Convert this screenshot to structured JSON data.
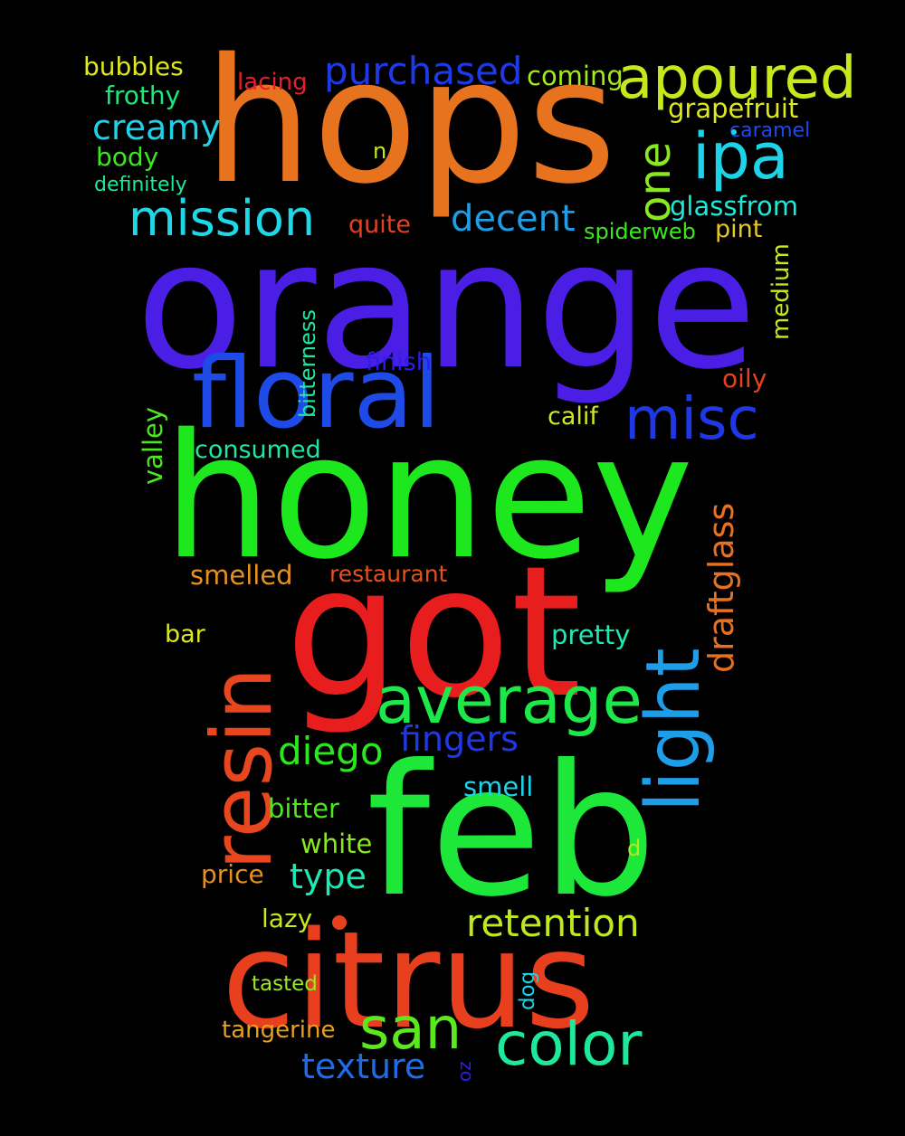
{
  "words": {
    "orange": {
      "text": "orange",
      "color": "#4b1ee6"
    },
    "hops": {
      "text": "hops",
      "color": "#e8731e"
    },
    "honey": {
      "text": "honey",
      "color": "#1de81d"
    },
    "got": {
      "text": "got",
      "color": "#e81e1e"
    },
    "feb": {
      "text": "feb",
      "color": "#1de83a"
    },
    "citrus": {
      "text": "citrus",
      "color": "#e8401e"
    },
    "floral": {
      "text": "floral",
      "color": "#1e4be8"
    },
    "resin": {
      "text": "resin",
      "color": "#e8461e"
    },
    "average": {
      "text": "average",
      "color": "#1de84a"
    },
    "light": {
      "text": "light",
      "color": "#1e9ee8"
    },
    "mission": {
      "text": "mission",
      "color": "#1ed8e8"
    },
    "misc": {
      "text": "misc",
      "color": "#1e38e8"
    },
    "ipa": {
      "text": "ipa",
      "color": "#1ed2e8"
    },
    "apoured": {
      "text": "apoured",
      "color": "#c8e81e"
    },
    "purchased": {
      "text": "purchased",
      "color": "#1e3ae8"
    },
    "color": {
      "text": "color",
      "color": "#1ee89a"
    },
    "san": {
      "text": "san",
      "color": "#5ae81e"
    },
    "retention": {
      "text": "retention",
      "color": "#c0e81e"
    },
    "creamy": {
      "text": "creamy",
      "color": "#1ed2e8"
    },
    "one": {
      "text": "one",
      "color": "#8ae81e"
    },
    "decent": {
      "text": "decent",
      "color": "#1e9ee8"
    },
    "draftglass": {
      "text": "draftglass",
      "color": "#e8701e"
    },
    "diego": {
      "text": "diego",
      "color": "#2ae81e"
    },
    "fingers": {
      "text": "fingers",
      "color": "#1e38e8"
    },
    "texture": {
      "text": "texture",
      "color": "#1e6ce8"
    },
    "type": {
      "text": "type",
      "color": "#1ee8b4"
    },
    "grapefruit": {
      "text": "grapefruit",
      "color": "#dde81e"
    },
    "glassfrom": {
      "text": "glassfrom",
      "color": "#1ee8d8"
    },
    "coming": {
      "text": "coming",
      "color": "#a6e81e"
    },
    "bubbles": {
      "text": "bubbles",
      "color": "#dde81e"
    },
    "frothy": {
      "text": "frothy",
      "color": "#1ee87a"
    },
    "body": {
      "text": "body",
      "color": "#3ae81e"
    },
    "definitely": {
      "text": "definitely",
      "color": "#1ee89a"
    },
    "lacing": {
      "text": "lacing",
      "color": "#e81e2a"
    },
    "caramel": {
      "text": "caramel",
      "color": "#1e4be8"
    },
    "n": {
      "text": "n",
      "color": "#c8e81e"
    },
    "quite": {
      "text": "quite",
      "color": "#e8401e"
    },
    "pint": {
      "text": "pint",
      "color": "#e8c81e"
    },
    "spiderweb": {
      "text": "spiderweb",
      "color": "#3ae81e"
    },
    "medium": {
      "text": "medium",
      "color": "#c8e81e"
    },
    "bitterness": {
      "text": "bitterness",
      "color": "#1ee8a0"
    },
    "finish": {
      "text": "finish",
      "color": "#2a1ee8"
    },
    "oily": {
      "text": "oily",
      "color": "#e8401e"
    },
    "calif": {
      "text": "calif",
      "color": "#d0e81e"
    },
    "valley": {
      "text": "valley",
      "color": "#4ae81e"
    },
    "consumed": {
      "text": "consumed",
      "color": "#1ee8a0"
    },
    "smelled": {
      "text": "smelled",
      "color": "#e8901e"
    },
    "restaurant": {
      "text": "restaurant",
      "color": "#e8501e"
    },
    "bar": {
      "text": "bar",
      "color": "#dde81e"
    },
    "pretty": {
      "text": "pretty",
      "color": "#1ee8b4"
    },
    "smell": {
      "text": "smell",
      "color": "#1ed2e8"
    },
    "bitter": {
      "text": "bitter",
      "color": "#4ae81e"
    },
    "white": {
      "text": "white",
      "color": "#8ae81e"
    },
    "d": {
      "text": "d",
      "color": "#b4e81e"
    },
    "price": {
      "text": "price",
      "color": "#e8901e"
    },
    "lazy": {
      "text": "lazy",
      "color": "#c8e81e"
    },
    "tasted": {
      "text": "tasted",
      "color": "#9ae81e"
    },
    "dog": {
      "text": "dog",
      "color": "#1ed2e8"
    },
    "tangerine": {
      "text": "tangerine",
      "color": "#e8a01e"
    },
    "oz": {
      "text": "oz",
      "color": "#2a1ee8"
    }
  }
}
